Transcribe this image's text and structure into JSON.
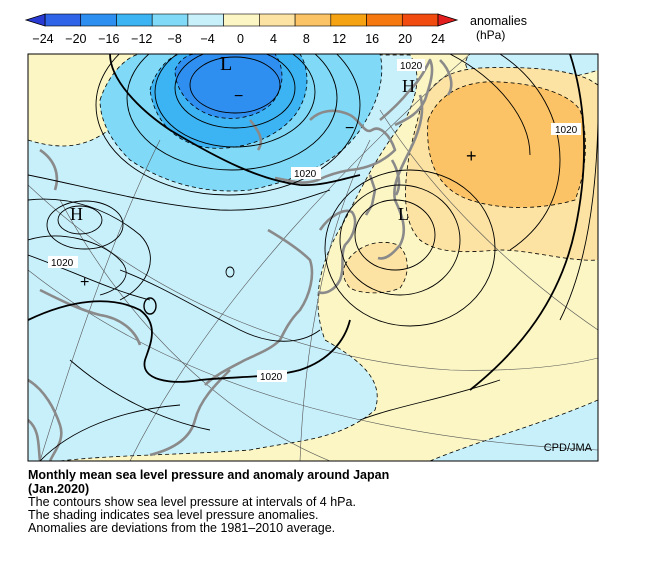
{
  "colorbar": {
    "ticks": [
      "−24",
      "−20",
      "−16",
      "−12",
      "−8",
      "−4",
      "0",
      "4",
      "8",
      "12",
      "16",
      "20",
      "24"
    ],
    "label_line1": "anomalies",
    "label_line2": "(hPa)",
    "colors": [
      "#2a3bd4",
      "#2f64e8",
      "#2f8ff0",
      "#3cb3f2",
      "#7fd9f7",
      "#c8f0fb",
      "#fbf6c4",
      "#fde3a3",
      "#fbc365",
      "#f6a313",
      "#f6790f",
      "#f14b10",
      "#e31e1e"
    ]
  },
  "map": {
    "pressure_labels": [
      "1020",
      "1020",
      "1020",
      "1020",
      "1020"
    ],
    "centers": {
      "low": "L",
      "high": "H"
    },
    "anomaly_signs": {
      "minus": "−",
      "plus": "+"
    },
    "credit": "CPD/JMA",
    "colors": {
      "ocean": "#ffffff",
      "coast": "#8a8a8a",
      "contour": "#000000"
    }
  },
  "caption": {
    "title_line1": "Monthly mean sea level pressure and anomaly around Japan",
    "title_line2": "(Jan.2020)",
    "line1": "The contours show sea level pressure at intervals of 4 hPa.",
    "line2": "The shading indicates sea level pressure anomalies.",
    "line3": "Anomalies are deviations from the 1981–2010 average."
  }
}
